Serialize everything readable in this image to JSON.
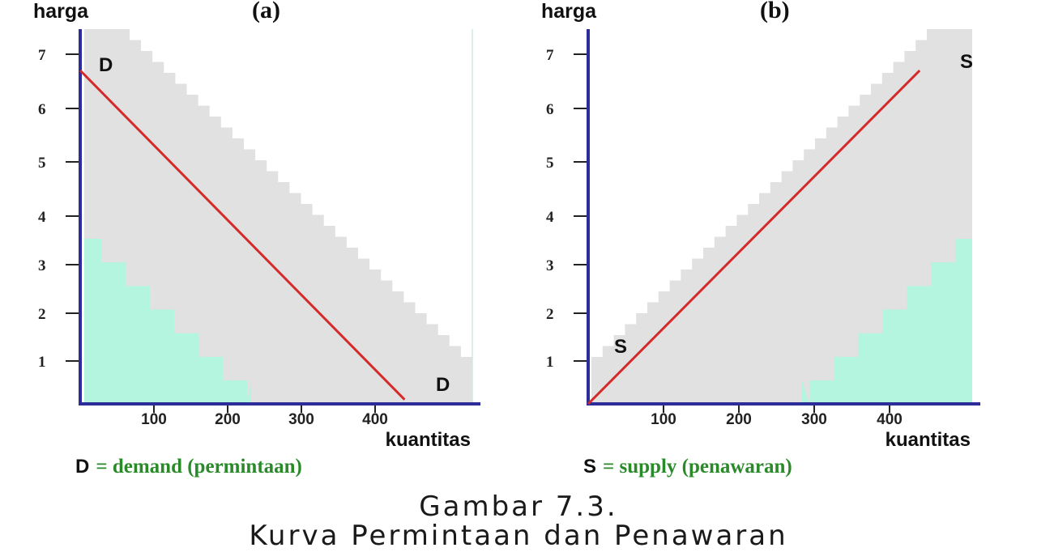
{
  "chart_data": [
    {
      "type": "line",
      "panel_label": "(a)",
      "ylabel": "harga",
      "xlabel": "kuantitas",
      "yticks": [
        1,
        2,
        3,
        4,
        5,
        6,
        7
      ],
      "xticks": [
        100,
        200,
        300,
        400
      ],
      "xlim": [
        0,
        480
      ],
      "ylim": [
        0,
        7.5
      ],
      "series": [
        {
          "name": "D",
          "x": [
            0,
            440
          ],
          "y": [
            6.7,
            0.1
          ],
          "color": "#d42a2a"
        }
      ],
      "curve_labels": [
        {
          "text": "D",
          "at": "start"
        },
        {
          "text": "D",
          "at": "end"
        }
      ],
      "legend_key": "D",
      "legend_text": "= demand (permintaan)",
      "shaded_regions": [
        {
          "color": "#e1e1e1",
          "shape": "staircase-upper-left"
        },
        {
          "color": "#b3f5de",
          "shape": "staircase-lower-left"
        }
      ]
    },
    {
      "type": "line",
      "panel_label": "(b)",
      "ylabel": "harga",
      "xlabel": "kuantitas",
      "yticks": [
        1,
        2,
        3,
        4,
        5,
        6,
        7
      ],
      "xticks": [
        100,
        200,
        300,
        400
      ],
      "xlim": [
        0,
        480
      ],
      "ylim": [
        0,
        7.5
      ],
      "series": [
        {
          "name": "S",
          "x": [
            0,
            440
          ],
          "y": [
            0,
            6.7
          ],
          "color": "#d42a2a"
        }
      ],
      "curve_labels": [
        {
          "text": "S",
          "at": "start"
        },
        {
          "text": "S",
          "at": "end"
        }
      ],
      "legend_key": "S",
      "legend_text": "= supply (penawaran)",
      "shaded_regions": [
        {
          "color": "#e1e1e1",
          "shape": "staircase-upper-right"
        },
        {
          "color": "#b3f5de",
          "shape": "staircase-lower-right"
        }
      ]
    }
  ],
  "caption": {
    "line1": "Gambar 7.3.",
    "line2": "Kurva Permintaan dan Penawaran"
  },
  "colors": {
    "axis": "#2c2c9a",
    "curve": "#d42a2a",
    "gray_fill": "#e1e1e1",
    "mint_fill": "#b3f5de",
    "legend_green": "#2a8a2a"
  }
}
